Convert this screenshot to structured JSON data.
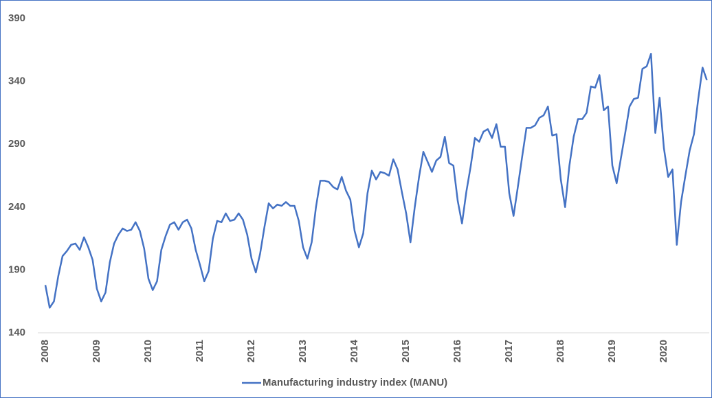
{
  "chart_data": {
    "type": "line",
    "categories": [
      "2008",
      null,
      null,
      null,
      null,
      null,
      null,
      null,
      null,
      null,
      null,
      null,
      "2009",
      null,
      null,
      null,
      null,
      null,
      null,
      null,
      null,
      null,
      null,
      null,
      "2010",
      null,
      null,
      null,
      null,
      null,
      null,
      null,
      null,
      null,
      null,
      null,
      "2011",
      null,
      null,
      null,
      null,
      null,
      null,
      null,
      null,
      null,
      null,
      null,
      "2012",
      null,
      null,
      null,
      null,
      null,
      null,
      null,
      null,
      null,
      null,
      null,
      "2013",
      null,
      null,
      null,
      null,
      null,
      null,
      null,
      null,
      null,
      null,
      null,
      "2014",
      null,
      null,
      null,
      null,
      null,
      null,
      null,
      null,
      null,
      null,
      null,
      "2015",
      null,
      null,
      null,
      null,
      null,
      null,
      null,
      null,
      null,
      null,
      null,
      "2016",
      null,
      null,
      null,
      null,
      null,
      null,
      null,
      null,
      null,
      null,
      null,
      "2017",
      null,
      null,
      null,
      null,
      null,
      null,
      null,
      null,
      null,
      null,
      null,
      "2018",
      null,
      null,
      null,
      null,
      null,
      null,
      null,
      null,
      null,
      null,
      null,
      "2019",
      null,
      null,
      null,
      null,
      null,
      null,
      null,
      null,
      null,
      null,
      null,
      "2020",
      null,
      null,
      null,
      null,
      null,
      null,
      null,
      null,
      null,
      null
    ],
    "series": [
      {
        "name": "Manufacturing industry index (MANU)",
        "color": "#4472c4",
        "values": [
          178,
          160,
          165,
          185,
          201,
          205,
          210,
          211,
          206,
          216,
          208,
          198,
          175,
          165,
          172,
          196,
          211,
          218,
          223,
          221,
          222,
          228,
          221,
          207,
          183,
          174,
          181,
          206,
          217,
          226,
          228,
          222,
          228,
          230,
          223,
          206,
          194,
          181,
          189,
          215,
          229,
          228,
          235,
          229,
          230,
          235,
          230,
          218,
          199,
          188,
          203,
          224,
          243,
          239,
          242,
          241,
          244,
          241,
          241,
          229,
          208,
          199,
          212,
          240,
          261,
          261,
          260,
          256,
          254,
          264,
          253,
          246,
          221,
          208,
          219,
          251,
          269,
          262,
          268,
          267,
          265,
          278,
          270,
          252,
          235,
          212,
          240,
          264,
          284,
          276,
          268,
          277,
          280,
          296,
          275,
          273,
          245,
          227,
          252,
          272,
          295,
          292,
          300,
          302,
          295,
          306,
          288,
          288,
          251,
          233,
          256,
          280,
          303,
          303,
          305,
          311,
          313,
          320,
          297,
          298,
          262,
          240,
          273,
          296,
          310,
          310,
          315,
          336,
          335,
          345,
          317,
          320,
          273,
          259,
          279,
          299,
          320,
          326,
          327,
          350,
          352,
          362,
          299,
          327,
          287,
          264,
          270,
          210,
          244,
          265,
          285,
          298,
          326,
          351,
          341
        ]
      }
    ],
    "ylim": [
      140,
      390
    ],
    "yticks": [
      140,
      190,
      240,
      290,
      340,
      390
    ],
    "grid": false,
    "legend": "bottom"
  }
}
